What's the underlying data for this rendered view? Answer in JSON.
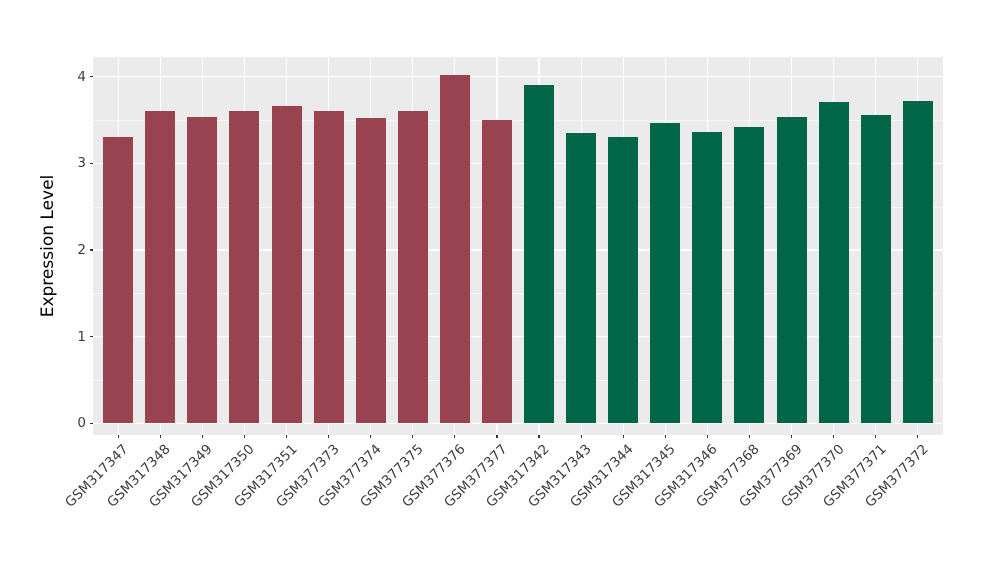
{
  "chart_data": {
    "type": "bar",
    "title": "",
    "xlabel": "",
    "ylabel": "Expression Level",
    "ylim": [
      0,
      4.2
    ],
    "yticks": [
      0,
      1,
      2,
      3,
      4
    ],
    "minor_gridlines_every": 0.5,
    "grid": "on",
    "legend": "none",
    "x_tick_rotation_deg": 45,
    "panel_background": "#EBEBEB",
    "gridline_color": "#FFFFFF",
    "axis_text_color": "#3D3D3D",
    "categories": [
      "GSM317347",
      "GSM317348",
      "GSM317349",
      "GSM317350",
      "GSM317351",
      "GSM377373",
      "GSM377374",
      "GSM377375",
      "GSM377376",
      "GSM377377",
      "GSM317342",
      "GSM317343",
      "GSM317344",
      "GSM317345",
      "GSM317346",
      "GSM377368",
      "GSM377369",
      "GSM377370",
      "GSM377371",
      "GSM377372"
    ],
    "values": [
      3.31,
      3.6,
      3.53,
      3.61,
      3.66,
      3.6,
      3.52,
      3.61,
      4.02,
      3.5,
      3.9,
      3.35,
      3.3,
      3.47,
      3.36,
      3.42,
      3.54,
      3.71,
      3.56,
      3.72
    ],
    "bar_groups": [
      "maroon",
      "maroon",
      "maroon",
      "maroon",
      "maroon",
      "maroon",
      "maroon",
      "maroon",
      "maroon",
      "maroon",
      "green",
      "green",
      "green",
      "green",
      "green",
      "green",
      "green",
      "green",
      "green",
      "green"
    ],
    "group_colors": {
      "maroon": "#9A4350",
      "green": "#006647"
    }
  }
}
